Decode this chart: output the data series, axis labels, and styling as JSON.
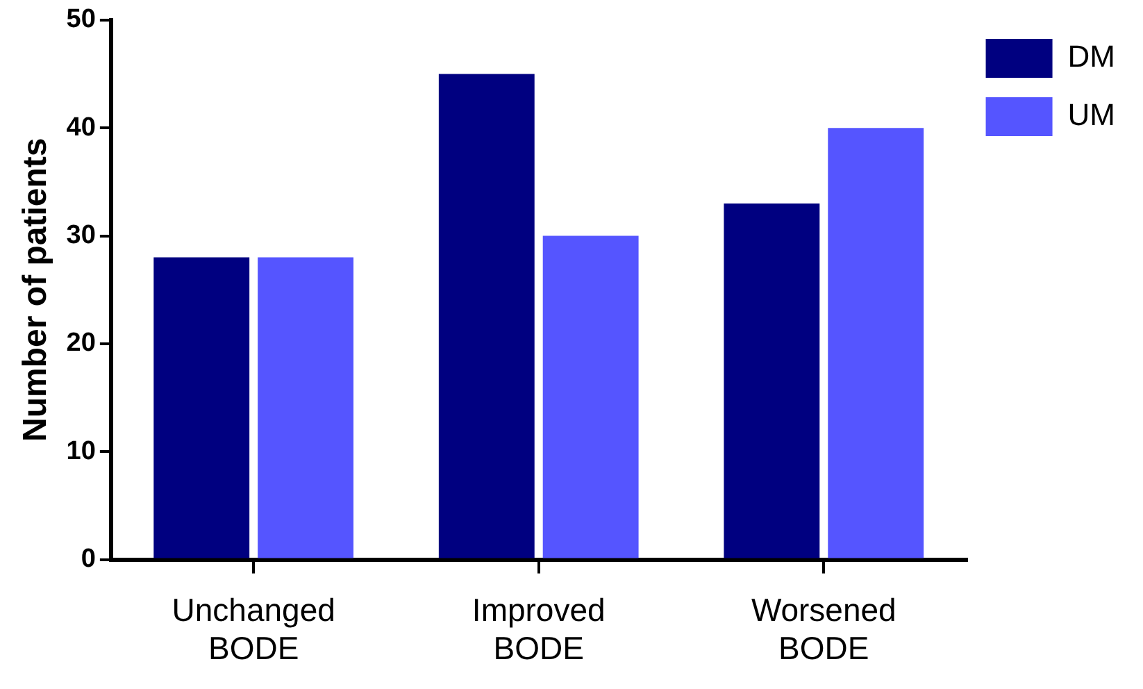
{
  "chart_data": {
    "type": "bar",
    "ylabel": "Number of patients",
    "categories": [
      "Unchanged BODE",
      "Improved BODE",
      "Worsened BODE"
    ],
    "series": [
      {
        "name": "DM",
        "color": "#000080",
        "values": [
          28,
          45,
          33
        ]
      },
      {
        "name": "UM",
        "color": "#5555ff",
        "values": [
          28,
          30,
          40
        ]
      }
    ],
    "ylim": [
      0,
      50
    ],
    "yticks": [
      0,
      10,
      20,
      30,
      40,
      50
    ],
    "grid": false,
    "legend": "top right"
  }
}
